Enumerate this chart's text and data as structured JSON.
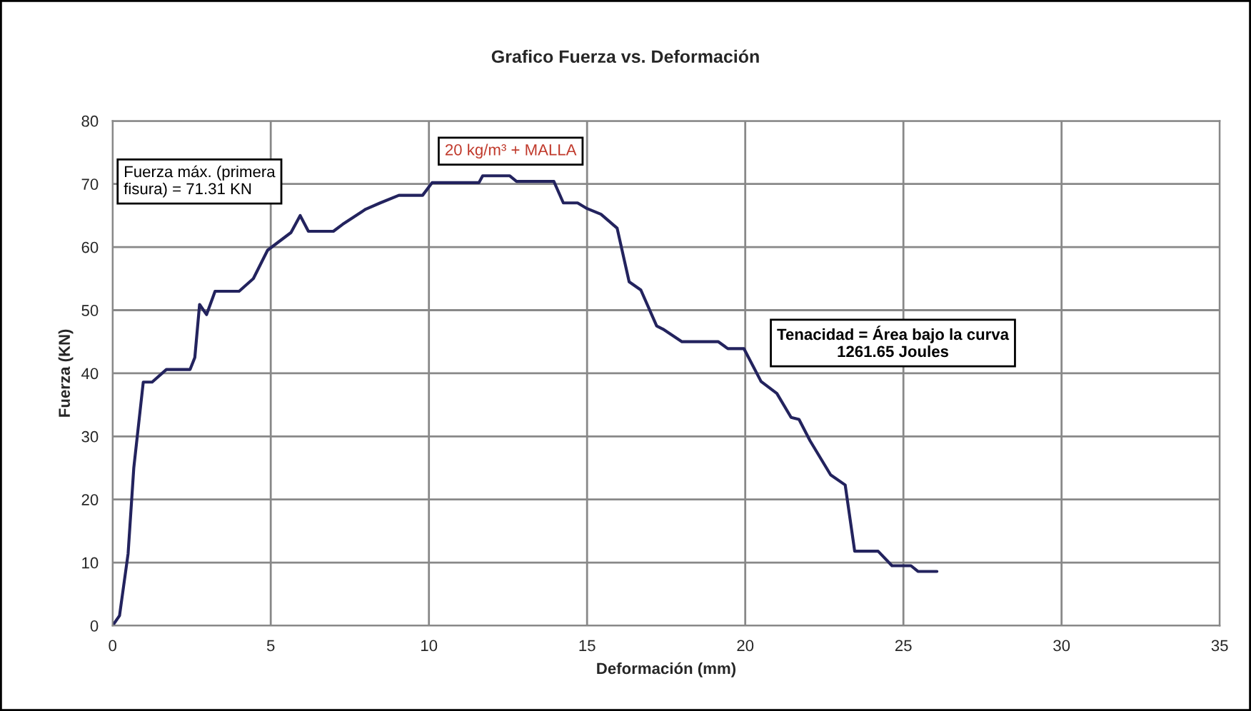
{
  "chart_data": {
    "type": "line",
    "title": "Grafico Fuerza vs. Deformación",
    "xlabel": "Deformación (mm)",
    "ylabel": "Fuerza (KN)",
    "series": [
      {
        "color": "#23235e",
        "x": [
          0,
          0.22,
          0.49,
          0.67,
          0.97,
          1.25,
          1.7,
          2.45,
          2.6,
          2.75,
          2.97,
          3.24,
          4.0,
          4.45,
          4.9,
          5.64,
          5.93,
          6.19,
          6.98,
          7.27,
          8.0,
          8.46,
          9.05,
          9.8,
          10.1,
          11.58,
          11.7,
          12.55,
          12.77,
          13.95,
          14.25,
          14.7,
          15.0,
          15.44,
          15.95,
          16.33,
          16.7,
          17.2,
          17.4,
          18.0,
          19.15,
          19.45,
          19.96,
          20.5,
          21.0,
          21.45,
          21.7,
          22.05,
          22.7,
          23.16,
          23.46,
          24.2,
          24.64,
          25.24,
          25.46,
          26.06
        ],
        "values": [
          0,
          1.6,
          11.4,
          25,
          38.6,
          38.6,
          40.6,
          40.6,
          42.5,
          50.9,
          49.3,
          53,
          53,
          55,
          59.5,
          62.3,
          65,
          62.5,
          62.5,
          63.6,
          66,
          67,
          68.2,
          68.2,
          70.2,
          70.2,
          71.3,
          71.3,
          70.4,
          70.4,
          67,
          67,
          66.1,
          65.2,
          63,
          54.5,
          53.2,
          47.5,
          47,
          45,
          45,
          43.9,
          43.9,
          38.7,
          36.8,
          33,
          32.7,
          29.3,
          23.9,
          22.3,
          11.8,
          11.8,
          9.5,
          9.5,
          8.6,
          8.6
        ]
      }
    ],
    "xlim": [
      0,
      35
    ],
    "xticks": [
      0,
      5,
      10,
      15,
      20,
      25,
      30,
      35
    ],
    "ylim": [
      0,
      80
    ],
    "yticks": [
      0,
      10,
      20,
      30,
      40,
      50,
      60,
      70,
      80
    ],
    "grid": true,
    "marker": "none",
    "line_style": "solid",
    "annotations": [
      "Fuerza máx. (primera\nfisura) = 71.31 KN",
      "20 kg/m³ + MALLA",
      "Tenacidad = Área bajo la curva\n1261.65 Joules"
    ]
  }
}
